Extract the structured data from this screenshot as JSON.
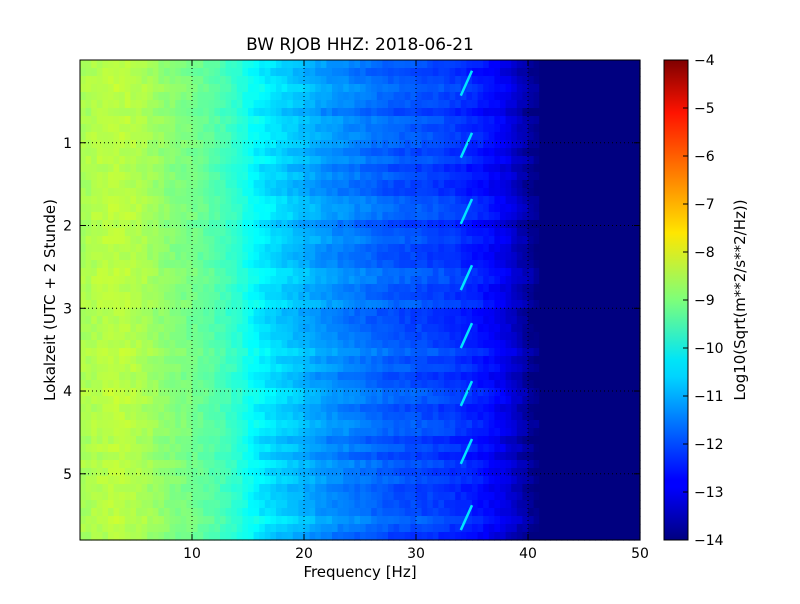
{
  "chart_data": {
    "type": "heatmap",
    "title": "BW RJOB HHZ: 2018-06-21",
    "xlabel": "Frequency [Hz]",
    "ylabel": "Lokalzeit (UTC + 2 Stunde)",
    "xlim": [
      0,
      50
    ],
    "ylim": [
      5.8,
      0
    ],
    "x_ticks": [
      10,
      20,
      30,
      40,
      50
    ],
    "y_ticks": [
      1,
      2,
      3,
      4,
      5
    ],
    "grid": true,
    "colorbar": {
      "label": "Log10(Sqrt(m**2/s**2/Hz))",
      "range": [
        -14,
        -4
      ],
      "ticks": [
        -4,
        -5,
        -6,
        -7,
        -8,
        -9,
        -10,
        -11,
        -12,
        -13,
        -14
      ],
      "colormap": "jet"
    },
    "frequency_profile": {
      "frequency_hz": [
        0,
        3,
        5,
        8,
        10,
        12,
        14,
        16,
        18,
        20,
        22,
        25,
        28,
        30,
        33,
        36,
        38,
        40,
        41,
        50
      ],
      "log10_amplitude": [
        -8.6,
        -8.4,
        -8.5,
        -8.9,
        -9.1,
        -9.4,
        -9.8,
        -10.4,
        -10.7,
        -11.0,
        -11.3,
        -11.6,
        -11.9,
        -12.0,
        -12.2,
        -12.6,
        -13.0,
        -13.7,
        -14.0,
        -14.0
      ]
    },
    "narrow_band_feature": {
      "frequency_hz": [
        34.0,
        35.0
      ],
      "times_h": [
        0.25,
        1.0,
        1.8,
        2.6,
        3.3,
        4.0,
        4.7,
        5.5
      ]
    }
  }
}
